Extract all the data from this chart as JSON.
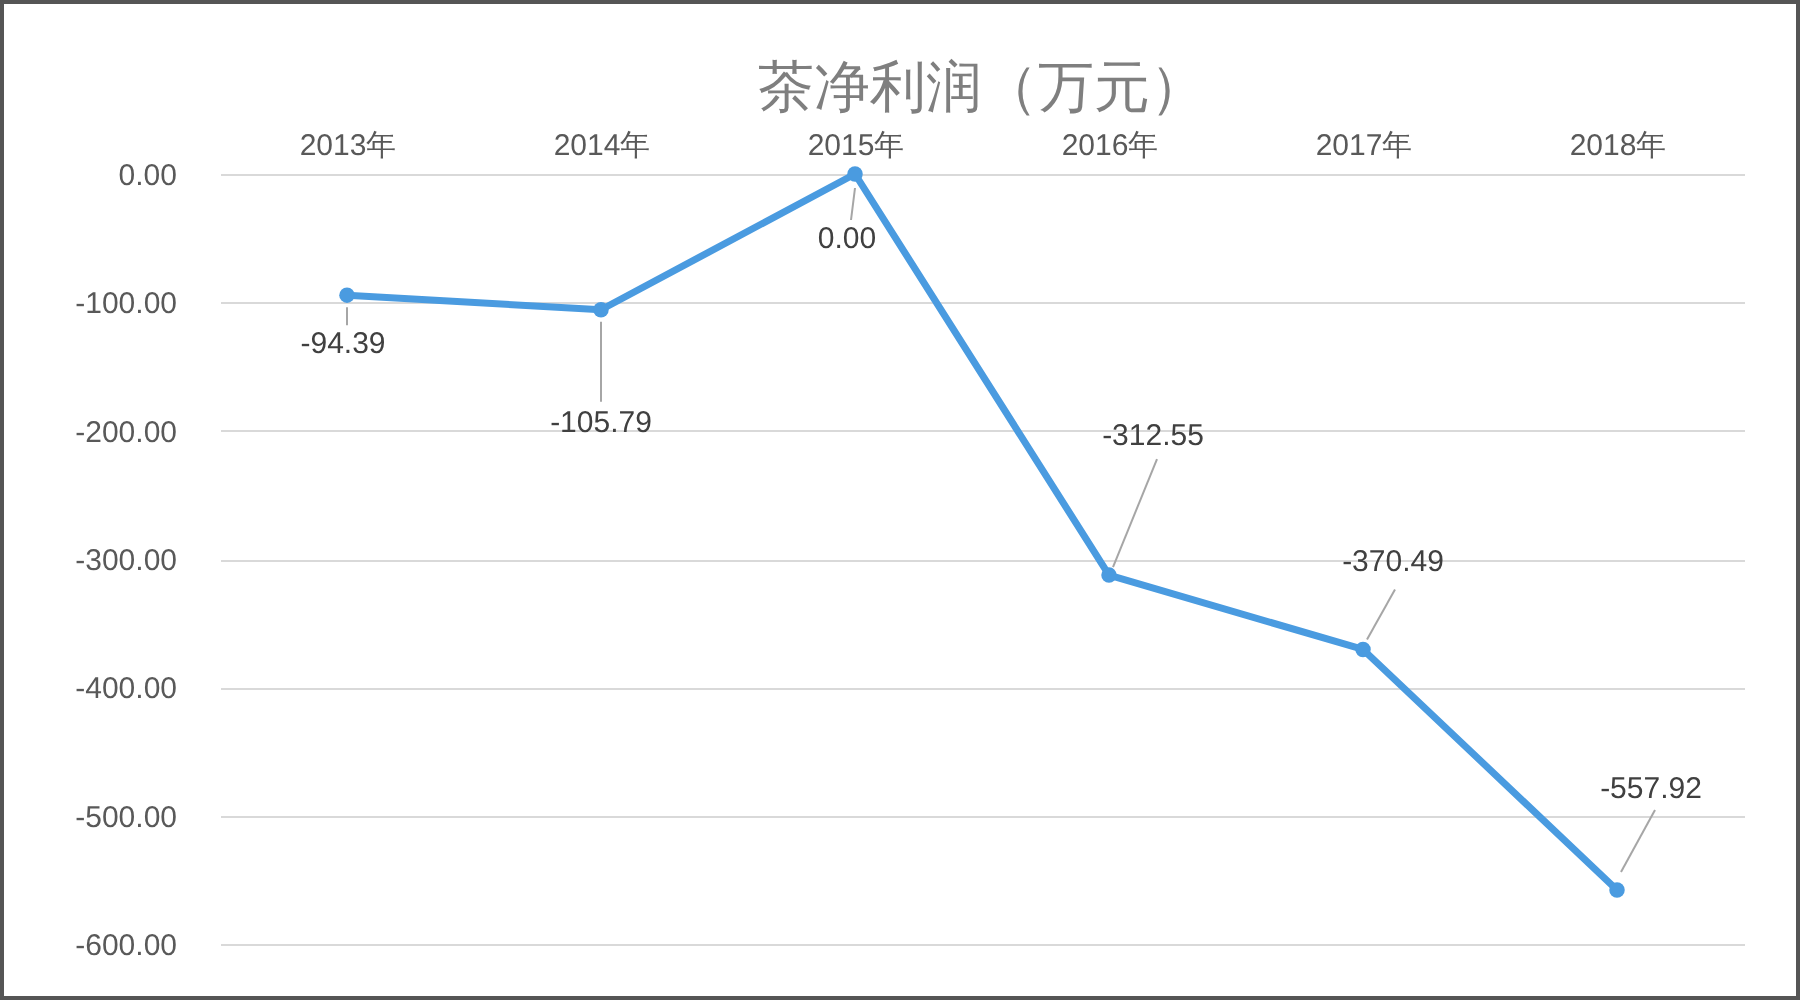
{
  "chart_data": {
    "type": "line",
    "title": "茶净利润（万元）",
    "categories": [
      "2013年",
      "2014年",
      "2015年",
      "2016年",
      "2017年",
      "2018年"
    ],
    "values": [
      -94.39,
      -105.79,
      0,
      -312.55,
      -370.49,
      -557.92
    ],
    "value_labels": [
      "-94.39",
      "-105.79",
      "0.00",
      "-312.55",
      "-370.49",
      "-557.92"
    ],
    "color": "#4a9be0",
    "ylim": [
      -600,
      0
    ],
    "yticks": [
      {
        "value": 0,
        "label": "0.00"
      },
      {
        "value": -100,
        "label": "-100.00"
      },
      {
        "value": -200,
        "label": "-200.00"
      },
      {
        "value": -300,
        "label": "-300.00"
      },
      {
        "value": -400,
        "label": "-400.00"
      },
      {
        "value": -500,
        "label": "-500.00"
      },
      {
        "value": -600,
        "label": "-600.00"
      }
    ],
    "grid": "y",
    "marker": "circle",
    "line_style": "solid"
  }
}
